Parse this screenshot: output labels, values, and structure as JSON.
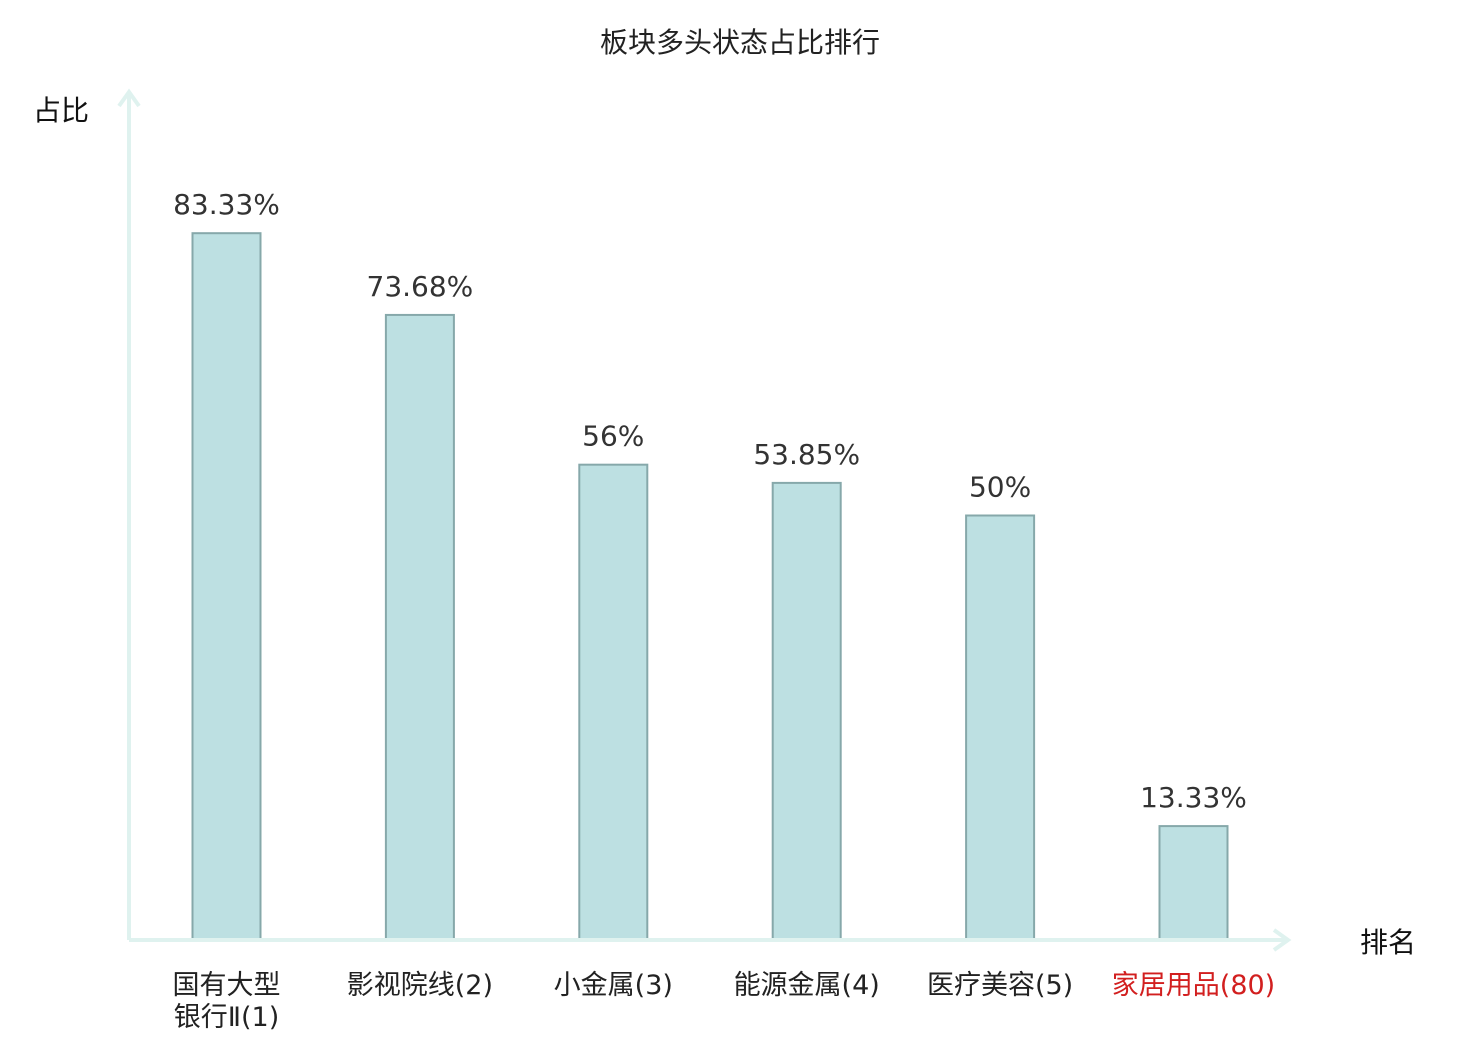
{
  "chart_data": {
    "type": "bar",
    "title": "板块多头状态占比排行",
    "ylabel": "占比",
    "xlabel": "排名",
    "categories": [
      [
        "国有大型",
        "银行Ⅱ(1)"
      ],
      [
        "影视院线(2)"
      ],
      [
        "小金属(3)"
      ],
      [
        "能源金属(4)"
      ],
      [
        "医疗美容(5)"
      ],
      [
        "家居用品(80)"
      ]
    ],
    "values": [
      83.33,
      73.68,
      56,
      53.85,
      50,
      13.33
    ],
    "value_labels": [
      "83.33%",
      "73.68%",
      "56%",
      "53.85%",
      "50%",
      "13.33%"
    ],
    "highlight_index": 5,
    "ylim": [
      0,
      100
    ],
    "grid": false,
    "colors": {
      "bar_fill": "#bde0e2",
      "bar_stroke": "#86a8aa",
      "axis": "#dff2ef",
      "highlight_text": "#d21f1f"
    }
  }
}
